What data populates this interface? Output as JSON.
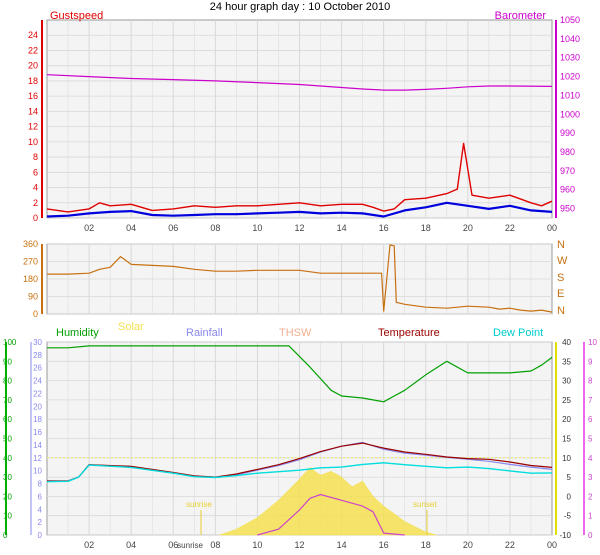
{
  "title": "24 hour graph day : 10 October 2010",
  "colors": {
    "gust": "#e00000",
    "wind": "#0000dd",
    "baro": "#cc00cc",
    "winddir": "#c87010",
    "humidity": "#00a000",
    "solar": "#f5e050",
    "uv": "#cc44cc",
    "rainfall": "#8888ee",
    "thsw": "#f0b090",
    "temperature": "#990000",
    "dewpoint": "#00dddd",
    "grid": "#d8d8d8",
    "plotbg": "#f4f4f4"
  },
  "chart_data": [
    {
      "type": "line",
      "name": "top",
      "x_ticks": [
        "02",
        "04",
        "06",
        "08",
        "10",
        "12",
        "14",
        "16",
        "18",
        "20",
        "22",
        "00"
      ],
      "left_axis_label": "Gustspeed",
      "right_axis_label": "Barometer",
      "ylim_left": [
        0,
        26
      ],
      "left_ticks": [
        "0",
        "2",
        "4",
        "6",
        "8",
        "10",
        "12",
        "14",
        "16",
        "18",
        "20",
        "22",
        "24"
      ],
      "ylim_right": [
        945,
        1050
      ],
      "right_ticks": [
        "950",
        "960",
        "970",
        "980",
        "990",
        "1000",
        "1010",
        "1020",
        "1030",
        "1040",
        "1050"
      ],
      "series": [
        {
          "key": "gust",
          "axis": "left",
          "x": [
            0,
            1,
            2,
            2.5,
            3,
            4,
            5,
            6,
            7,
            8,
            9,
            10,
            11,
            12,
            13,
            14,
            15,
            15.5,
            16,
            16.5,
            17,
            18,
            19,
            19.5,
            19.8,
            20.2,
            21,
            22,
            23,
            23.5,
            24
          ],
          "y": [
            1.2,
            0.8,
            1.2,
            2.0,
            1.6,
            1.8,
            1.0,
            1.2,
            1.6,
            1.4,
            1.6,
            1.6,
            1.8,
            2.0,
            1.6,
            1.8,
            1.8,
            1.4,
            0.9,
            1.2,
            2.4,
            2.6,
            3.2,
            3.8,
            9.8,
            3.0,
            2.6,
            3.0,
            2.0,
            1.6,
            2.2
          ]
        },
        {
          "key": "wind",
          "axis": "left",
          "x": [
            0,
            1,
            2,
            3,
            4,
            5,
            6,
            7,
            8,
            9,
            10,
            11,
            12,
            13,
            14,
            15,
            16,
            17,
            18,
            19,
            20,
            21,
            22,
            23,
            24
          ],
          "y": [
            0.2,
            0.3,
            0.6,
            0.8,
            0.9,
            0.4,
            0.3,
            0.4,
            0.5,
            0.5,
            0.6,
            0.7,
            0.8,
            0.6,
            0.7,
            0.6,
            0.2,
            1.0,
            1.4,
            2.0,
            1.6,
            1.2,
            1.6,
            1.0,
            0.8
          ]
        },
        {
          "key": "baro",
          "axis": "right",
          "x": [
            0,
            2,
            4,
            6,
            8,
            10,
            12,
            14,
            15,
            16,
            17,
            18,
            19,
            20,
            21,
            22,
            24
          ],
          "y": [
            1021.0,
            1020.0,
            1019.0,
            1018.4,
            1017.7,
            1016.8,
            1015.8,
            1014.2,
            1013.4,
            1012.8,
            1012.8,
            1013.2,
            1013.8,
            1014.6,
            1015.0,
            1015.0,
            1014.8
          ]
        }
      ]
    },
    {
      "type": "line",
      "name": "wind-direction",
      "x_ticks": [
        "02",
        "04",
        "06",
        "08",
        "10",
        "12",
        "14",
        "16",
        "18",
        "20",
        "22",
        "00"
      ],
      "ylim": [
        0,
        360
      ],
      "left_ticks": [
        "0",
        "90",
        "180",
        "270",
        "360"
      ],
      "right_labels": [
        "N",
        "W",
        "S",
        "E",
        "N"
      ],
      "series": [
        {
          "key": "winddir",
          "x": [
            0,
            1,
            2,
            2.5,
            3,
            3.5,
            4,
            5,
            6,
            7,
            8,
            9,
            10,
            11,
            12,
            13,
            14,
            15,
            15.9,
            16.0,
            16.3,
            16.5,
            16.6,
            17,
            18,
            19,
            20,
            21,
            21.5,
            22,
            22.5,
            23,
            23.5,
            24
          ],
          "y": [
            205,
            205,
            210,
            230,
            240,
            295,
            255,
            250,
            245,
            230,
            220,
            220,
            225,
            225,
            225,
            210,
            210,
            210,
            210,
            15,
            355,
            350,
            60,
            50,
            35,
            30,
            40,
            35,
            25,
            30,
            20,
            15,
            20,
            10
          ]
        }
      ]
    },
    {
      "type": "line",
      "name": "bottom",
      "x_ticks": [
        "02",
        "04",
        "06",
        "sunrise",
        "08",
        "10",
        "12",
        "14",
        "16",
        "18",
        "20",
        "22",
        "00"
      ],
      "annotations": [
        "sunrise",
        "sunset"
      ],
      "legend": [
        "Humidity",
        "Solar",
        "Rainfall",
        "THSW",
        "Temperature",
        "Dew Point"
      ],
      "ylim_humidity": [
        0,
        100
      ],
      "humidity_ticks": [
        "0",
        "10",
        "20",
        "30",
        "40",
        "50",
        "60",
        "70",
        "80",
        "90",
        "100"
      ],
      "ylim_rain": [
        0,
        30
      ],
      "rain_ticks": [
        "0",
        "2",
        "4",
        "6",
        "8",
        "10",
        "12",
        "14",
        "16",
        "18",
        "20",
        "22",
        "24",
        "26",
        "28",
        "30"
      ],
      "ylim_temp": [
        -10,
        40
      ],
      "temp_ticks": [
        "-10",
        "-5",
        "0",
        "5",
        "10",
        "15",
        "20",
        "25",
        "30",
        "35",
        "40"
      ],
      "ylim_uv": [
        0,
        10
      ],
      "uv_ticks": [
        "0",
        "1",
        "2",
        "3",
        "4",
        "5",
        "6",
        "7",
        "8",
        "9",
        "10"
      ],
      "series": [
        {
          "key": "humidity",
          "axis": "humidity",
          "x": [
            0,
            1,
            2,
            4,
            6,
            8,
            10,
            11.5,
            12.5,
            13.5,
            14,
            15,
            16,
            16.5,
            17,
            18,
            19,
            20,
            21,
            22,
            23,
            23.5,
            24
          ],
          "y": [
            97,
            97,
            98,
            98,
            98,
            98,
            98,
            98,
            87,
            75,
            72,
            71,
            69,
            72,
            75,
            83,
            90,
            84,
            84,
            84,
            85,
            88,
            92
          ]
        },
        {
          "key": "solar",
          "axis": "uv",
          "fill": true,
          "x": [
            8.2,
            9,
            10,
            11,
            12,
            12.5,
            13,
            13.5,
            14,
            14.5,
            15,
            15.5,
            16,
            17,
            18,
            18.5
          ],
          "y": [
            0,
            0.3,
            0.9,
            1.8,
            2.9,
            3.5,
            3.1,
            3.3,
            3.0,
            2.5,
            2.8,
            2.0,
            1.5,
            0.7,
            0.15,
            0
          ]
        },
        {
          "key": "uv",
          "axis": "uv",
          "x": [
            10,
            11,
            12,
            12.5,
            13,
            14,
            15,
            15.5,
            16,
            17
          ],
          "y": [
            0,
            0.3,
            1.3,
            1.9,
            2.1,
            1.8,
            1.5,
            1.2,
            0.1,
            0
          ]
        },
        {
          "key": "rainfall",
          "axis": "temp",
          "x": [
            0,
            1,
            1.5,
            2,
            4,
            6,
            7,
            8,
            9,
            10,
            11,
            12,
            13,
            14,
            15,
            16,
            17,
            18,
            19,
            20,
            21,
            22,
            23,
            24
          ],
          "y": [
            4.0,
            4.0,
            5.0,
            8.2,
            7.6,
            6.0,
            5.2,
            5.0,
            5.6,
            6.8,
            8.0,
            9.5,
            11.5,
            13.0,
            14.0,
            12.2,
            11.2,
            10.7,
            10.1,
            9.6,
            9.1,
            8.3,
            7.6,
            7.0
          ]
        },
        {
          "key": "temperature",
          "axis": "temp",
          "x": [
            0,
            1,
            1.5,
            2,
            4,
            6,
            7,
            8,
            9,
            10,
            11,
            12,
            13,
            14,
            15,
            16,
            17,
            18,
            19,
            20,
            21,
            22,
            23,
            24
          ],
          "y": [
            4.0,
            4.0,
            5.0,
            8.2,
            7.8,
            6.2,
            5.3,
            5.0,
            5.8,
            7.0,
            8.2,
            9.8,
            11.6,
            13.0,
            13.8,
            12.5,
            11.5,
            10.9,
            10.2,
            9.8,
            9.6,
            8.9,
            8.0,
            7.5
          ]
        },
        {
          "key": "dewpoint",
          "axis": "temp",
          "x": [
            0,
            1,
            1.5,
            2,
            4,
            6,
            7,
            8,
            9,
            10,
            11,
            12,
            13,
            14,
            15,
            16,
            17,
            18,
            19,
            20,
            21,
            22,
            23,
            24
          ],
          "y": [
            3.8,
            3.9,
            5.0,
            8.1,
            7.5,
            6.0,
            5.1,
            4.9,
            5.4,
            6.0,
            6.4,
            6.8,
            7.4,
            7.6,
            8.3,
            8.7,
            8.2,
            7.8,
            7.4,
            7.6,
            7.2,
            6.6,
            6.0,
            6.1
          ]
        }
      ]
    }
  ]
}
